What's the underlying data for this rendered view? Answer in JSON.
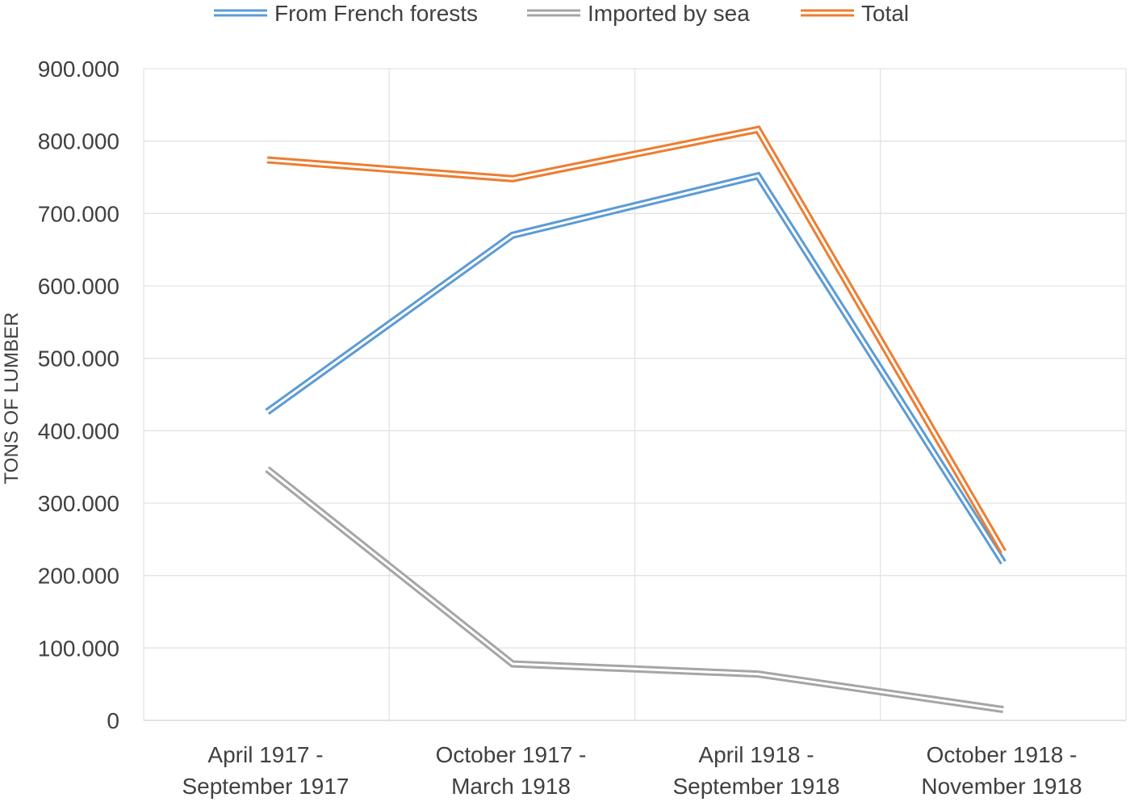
{
  "chart_data": {
    "type": "line",
    "title": "",
    "xlabel": "",
    "ylabel": "TONS OF LUMBER",
    "categories": [
      [
        "April 1917 -",
        "September 1917"
      ],
      [
        "October 1917 -",
        "March 1918"
      ],
      [
        "April 1918 -",
        "September 1918"
      ],
      [
        "October 1918 -",
        "November 1918"
      ]
    ],
    "series": [
      {
        "name": "From French forests",
        "color": "#5B9BD5",
        "values": [
          426000,
          670000,
          752000,
          218000
        ]
      },
      {
        "name": "Imported by sea",
        "color": "#A5A5A5",
        "values": [
          347000,
          78000,
          64000,
          15000
        ]
      },
      {
        "name": "Total",
        "color": "#ED7D31",
        "values": [
          774000,
          748000,
          816000,
          233000
        ]
      }
    ],
    "ylim": [
      0,
      900000
    ],
    "yticks": [
      0,
      100000,
      200000,
      300000,
      400000,
      500000,
      600000,
      700000,
      800000,
      900000
    ],
    "ytick_labels": [
      "0",
      "100.000",
      "200.000",
      "300.000",
      "400.000",
      "500.000",
      "600.000",
      "700.000",
      "800.000",
      "900.000"
    ],
    "grid": true,
    "legend_position": "top",
    "line_style": "double"
  }
}
